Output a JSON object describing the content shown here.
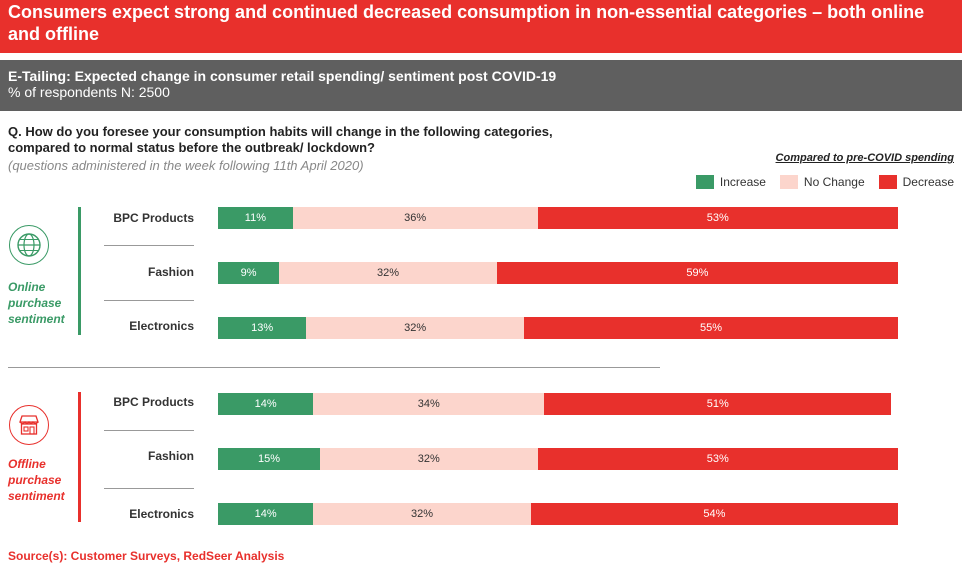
{
  "title": "Consumers expect strong and continued decreased consumption in non-essential categories – both online and offline",
  "subtitle": "E-Tailing: Expected change in consumer retail spending/ sentiment post COVID-19",
  "sample_note": "% of respondents N: 2500",
  "question": "Q. How do you foresee your consumption habits will change in the following categories, compared to normal status before the outbreak/ lockdown?",
  "question_note": "(questions administered in the week following 11th April 2020)",
  "compared_note": "Compared to pre-COVID spending",
  "legend": {
    "increase": "Increase",
    "no_change": "No Change",
    "decrease": "Decrease"
  },
  "colors": {
    "increase": "#3a9a66",
    "no_change": "#fcd5cc",
    "decrease": "#e8302c",
    "online_accent": "#3a9a66",
    "offline_accent": "#e8302c"
  },
  "segments": {
    "online": {
      "label_lines": [
        "Online",
        "purchase",
        "sentiment"
      ],
      "icon": "globe-icon"
    },
    "offline": {
      "label_lines": [
        "Offline",
        "purchase",
        "sentiment"
      ],
      "icon": "store-icon"
    }
  },
  "source": "Source(s): Customer Surveys, RedSeer Analysis",
  "chart_data": {
    "type": "bar",
    "stacked": true,
    "orientation": "horizontal",
    "value_unit": "%",
    "groups": [
      {
        "name": "Online purchase sentiment",
        "categories": [
          "BPC Products",
          "Fashion",
          "Electronics"
        ],
        "series": [
          {
            "name": "Increase",
            "values": [
              11,
              9,
              13
            ]
          },
          {
            "name": "No Change",
            "values": [
              36,
              32,
              32
            ]
          },
          {
            "name": "Decrease",
            "values": [
              53,
              59,
              55
            ]
          }
        ]
      },
      {
        "name": "Offline purchase sentiment",
        "categories": [
          "BPC Products",
          "Fashion",
          "Electronics"
        ],
        "series": [
          {
            "name": "Increase",
            "values": [
              14,
              15,
              14
            ]
          },
          {
            "name": "No Change",
            "values": [
              34,
              32,
              32
            ]
          },
          {
            "name": "Decrease",
            "values": [
              51,
              53,
              54
            ]
          }
        ]
      }
    ]
  }
}
